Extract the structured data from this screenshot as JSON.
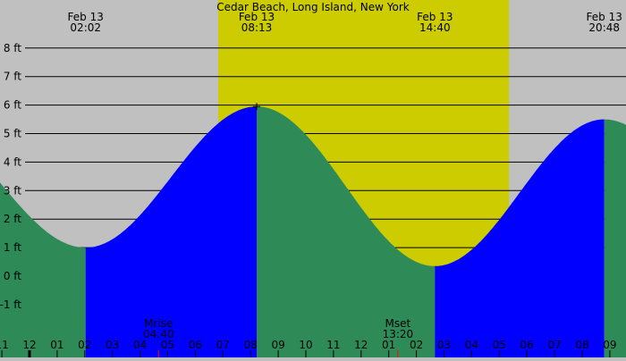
{
  "title": "Cedar Beach, Long Island, New York",
  "colors": {
    "night": "#c0c0c0",
    "day": "#cccc00",
    "falling": "#2e8b57",
    "rising": "#0000ff",
    "grid": "#000000",
    "moon_tick": "#ff0000"
  },
  "chart_data": {
    "type": "area",
    "title": "Cedar Beach, Long Island, New York",
    "x_unit": "hours (Feb 13)",
    "xlim": [
      -1.07,
      21.6
    ],
    "ylim": [
      -2,
      8.5
    ],
    "y_ticks": [
      {
        "value": 8,
        "label": "8 ft"
      },
      {
        "value": 7,
        "label": "7 ft"
      },
      {
        "value": 6,
        "label": "6 ft"
      },
      {
        "value": 5,
        "label": "5 ft"
      },
      {
        "value": 4,
        "label": "4 ft"
      },
      {
        "value": 3,
        "label": "3 ft"
      },
      {
        "value": 2,
        "label": "2 ft"
      },
      {
        "value": 1,
        "label": "1 ft"
      },
      {
        "value": 0,
        "label": "0 ft"
      },
      {
        "value": -1,
        "label": "-1 ft"
      }
    ],
    "x_ticks": [
      {
        "hour": -1,
        "label": "11"
      },
      {
        "hour": 0,
        "label": "12"
      },
      {
        "hour": 1,
        "label": "01"
      },
      {
        "hour": 2,
        "label": "02"
      },
      {
        "hour": 3,
        "label": "03"
      },
      {
        "hour": 4,
        "label": "04"
      },
      {
        "hour": 5,
        "label": "05"
      },
      {
        "hour": 6,
        "label": "06"
      },
      {
        "hour": 7,
        "label": "07"
      },
      {
        "hour": 8,
        "label": "08"
      },
      {
        "hour": 9,
        "label": "09"
      },
      {
        "hour": 10,
        "label": "10"
      },
      {
        "hour": 11,
        "label": "11"
      },
      {
        "hour": 12,
        "label": "12"
      },
      {
        "hour": 13,
        "label": "01"
      },
      {
        "hour": 14,
        "label": "02"
      },
      {
        "hour": 15,
        "label": "03"
      },
      {
        "hour": 16,
        "label": "04"
      },
      {
        "hour": 17,
        "label": "05"
      },
      {
        "hour": 18,
        "label": "06"
      },
      {
        "hour": 19,
        "label": "07"
      },
      {
        "hour": 20,
        "label": "08"
      },
      {
        "hour": 21,
        "label": "09"
      }
    ],
    "extremes": [
      {
        "hour": 2.03,
        "height": 1.0,
        "type": "low",
        "date": "Feb 13",
        "time": "02:02"
      },
      {
        "hour": 8.22,
        "height": 5.95,
        "type": "high",
        "date": "Feb 13",
        "time": "08:13"
      },
      {
        "hour": 14.67,
        "height": 0.35,
        "type": "low",
        "date": "Feb 13",
        "time": "14:40"
      },
      {
        "hour": 20.8,
        "height": 5.5,
        "type": "high",
        "date": "Feb 13",
        "time": "20:48"
      }
    ],
    "daylight": [
      6.83,
      17.35
    ],
    "moon_events": [
      {
        "label": "Mrise",
        "time": "04:40",
        "hour": 4.67
      },
      {
        "label": "Mset",
        "time": "13:20",
        "hour": 13.33
      }
    ]
  }
}
